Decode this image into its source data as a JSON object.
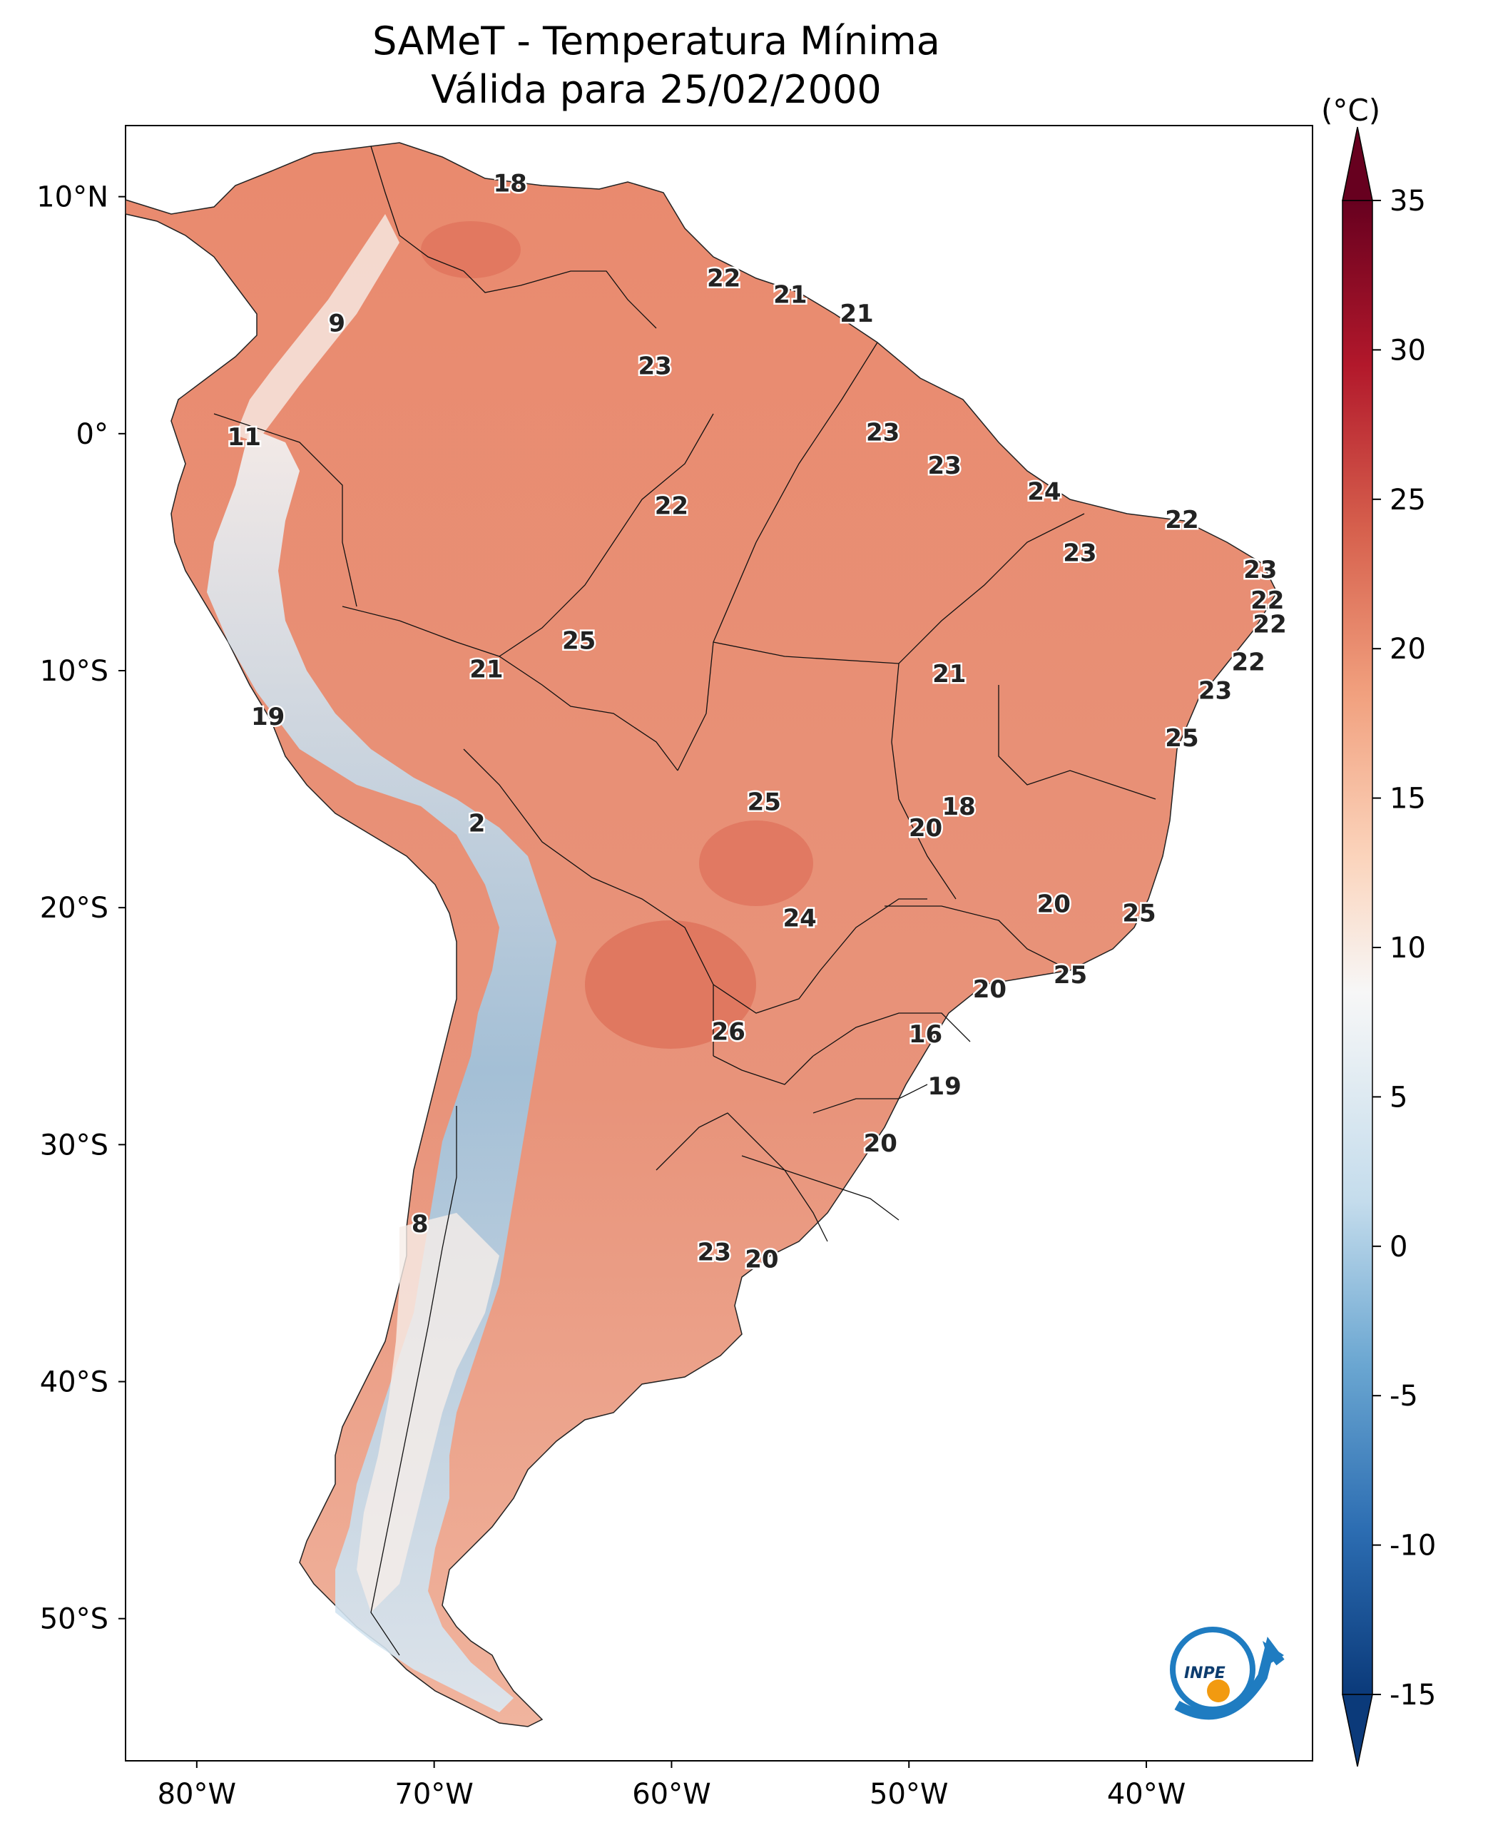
{
  "title": {
    "line1": "SAMeT - Temperatura Mínima",
    "line2": "Válida para 25/02/2000"
  },
  "colorbar": {
    "unit": "(°C)",
    "ticks": [
      "35",
      "30",
      "25",
      "20",
      "15",
      "10",
      "5",
      "0",
      "-5",
      "-10",
      "-15"
    ],
    "tick_values": [
      35,
      30,
      25,
      20,
      15,
      10,
      5,
      0,
      -5,
      -10,
      -15
    ],
    "range": [
      -15,
      35
    ],
    "colors": [
      "#0b3a7a",
      "#2c6db2",
      "#6aa6d1",
      "#c4dcec",
      "#f7f7f7",
      "#fbd4bc",
      "#f1a07e",
      "#d6604d",
      "#b2182b",
      "#67001f"
    ]
  },
  "axes": {
    "lat_labels": [
      "10°N",
      "0°",
      "10°S",
      "20°S",
      "30°S",
      "40°S",
      "50°S"
    ],
    "lat_values": [
      10,
      0,
      -10,
      -20,
      -30,
      -40,
      -50
    ],
    "lon_labels": [
      "80°W",
      "70°W",
      "60°W",
      "50°W",
      "40°W"
    ],
    "lon_values": [
      -80,
      -70,
      -60,
      -50,
      -40
    ],
    "lon_range": [
      -83,
      -33
    ],
    "lat_range": [
      -56,
      13
    ]
  },
  "city_labels": [
    {
      "text": "18",
      "lon": -66.8,
      "lat": 10.5
    },
    {
      "text": "22",
      "lon": -57.8,
      "lat": 6.5
    },
    {
      "text": "21",
      "lon": -55.0,
      "lat": 5.8
    },
    {
      "text": "21",
      "lon": -52.2,
      "lat": 5.0
    },
    {
      "text": "9",
      "lon": -74.1,
      "lat": 4.6
    },
    {
      "text": "23",
      "lon": -60.7,
      "lat": 2.8
    },
    {
      "text": "11",
      "lon": -78.0,
      "lat": -0.2
    },
    {
      "text": "23",
      "lon": -51.1,
      "lat": 0.0
    },
    {
      "text": "23",
      "lon": -48.5,
      "lat": -1.4
    },
    {
      "text": "24",
      "lon": -44.3,
      "lat": -2.5
    },
    {
      "text": "22",
      "lon": -60.0,
      "lat": -3.1
    },
    {
      "text": "22",
      "lon": -38.5,
      "lat": -3.7
    },
    {
      "text": "23",
      "lon": -42.8,
      "lat": -5.1
    },
    {
      "text": "23",
      "lon": -35.2,
      "lat": -5.8
    },
    {
      "text": "22",
      "lon": -34.9,
      "lat": -7.1
    },
    {
      "text": "22",
      "lon": -34.8,
      "lat": -8.1
    },
    {
      "text": "25",
      "lon": -63.9,
      "lat": -8.8
    },
    {
      "text": "22",
      "lon": -35.7,
      "lat": -9.7
    },
    {
      "text": "21",
      "lon": -67.8,
      "lat": -10.0
    },
    {
      "text": "21",
      "lon": -48.3,
      "lat": -10.2
    },
    {
      "text": "23",
      "lon": -37.1,
      "lat": -10.9
    },
    {
      "text": "19",
      "lon": -77.0,
      "lat": -12.0
    },
    {
      "text": "25",
      "lon": -38.5,
      "lat": -12.9
    },
    {
      "text": "25",
      "lon": -56.1,
      "lat": -15.6
    },
    {
      "text": "18",
      "lon": -47.9,
      "lat": -15.8
    },
    {
      "text": "2",
      "lon": -68.2,
      "lat": -16.5
    },
    {
      "text": "20",
      "lon": -49.3,
      "lat": -16.7
    },
    {
      "text": "20",
      "lon": -43.9,
      "lat": -19.9
    },
    {
      "text": "24",
      "lon": -54.6,
      "lat": -20.5
    },
    {
      "text": "25",
      "lon": -40.3,
      "lat": -20.3
    },
    {
      "text": "25",
      "lon": -43.2,
      "lat": -22.9
    },
    {
      "text": "20",
      "lon": -46.6,
      "lat": -23.5
    },
    {
      "text": "26",
      "lon": -57.6,
      "lat": -25.3
    },
    {
      "text": "16",
      "lon": -49.3,
      "lat": -25.4
    },
    {
      "text": "19",
      "lon": -48.5,
      "lat": -27.6
    },
    {
      "text": "20",
      "lon": -51.2,
      "lat": -30.0
    },
    {
      "text": "8",
      "lon": -70.6,
      "lat": -33.4
    },
    {
      "text": "23",
      "lon": -58.2,
      "lat": -34.6
    },
    {
      "text": "20",
      "lon": -56.2,
      "lat": -34.9
    }
  ],
  "logo": {
    "text": "INPE"
  }
}
